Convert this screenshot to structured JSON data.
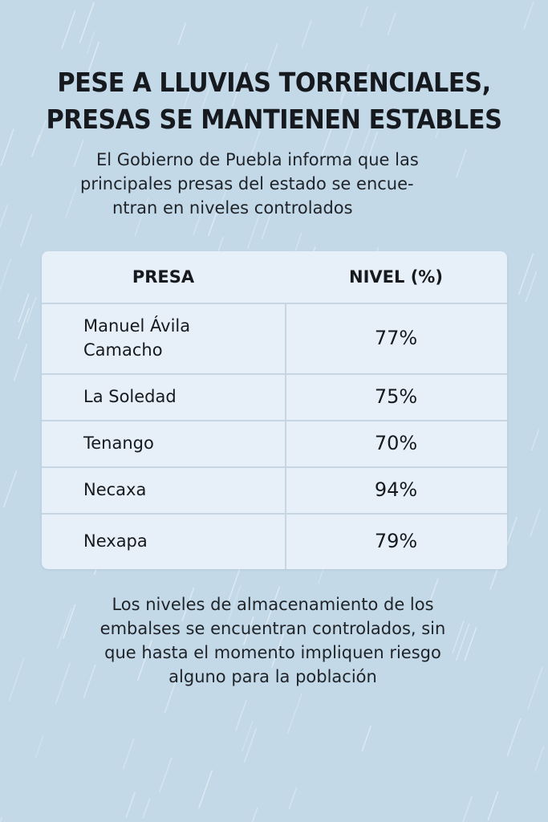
{
  "headline": {
    "line1": "PESE A LLUVIAS TORRENCIALES,",
    "line2": "PRESAS SE MANTIENEN ESTABLES"
  },
  "subtitle": {
    "line1": "El Gobierno de Puebla informa que las",
    "line2": "principales presas del estado se encue-",
    "line3": "ntran en niveles controlados"
  },
  "table": {
    "headers": [
      "PRESA",
      "NIVEL (%)"
    ],
    "rows": [
      {
        "presa": "Manuel Ávila Camacho",
        "presa_line1": "Manuel Ávila",
        "presa_line2": "Camacho",
        "nivel": "77%"
      },
      {
        "presa": "La Soledad",
        "nivel": "75%"
      },
      {
        "presa": "Tenango",
        "nivel": "70%"
      },
      {
        "presa": "Necaxa",
        "nivel": "94%"
      },
      {
        "presa": "Nexapa",
        "nivel": "79%"
      }
    ]
  },
  "footer": {
    "line1": "Los niveles de almacenamiento de los",
    "line2": "embalses se encuentran controlados, sin",
    "line3": "que hasta el momento impliquen riesgo",
    "line4": "alguno para la población"
  },
  "colors": {
    "background": "#c3d9e8",
    "table_bg": "#e7f0f8",
    "text": "#16191e"
  }
}
